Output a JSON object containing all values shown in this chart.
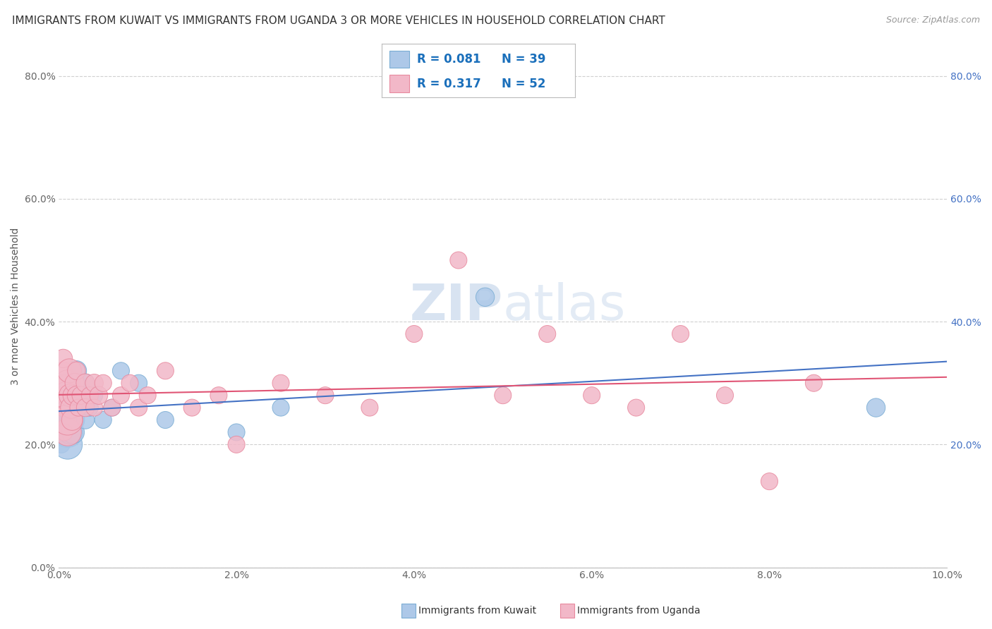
{
  "title": "IMMIGRANTS FROM KUWAIT VS IMMIGRANTS FROM UGANDA 3 OR MORE VEHICLES IN HOUSEHOLD CORRELATION CHART",
  "source": "Source: ZipAtlas.com",
  "ylabel": "3 or more Vehicles in Household",
  "xlim": [
    0.0,
    0.1
  ],
  "ylim": [
    0.0,
    0.85
  ],
  "xticks": [
    0.0,
    0.02,
    0.04,
    0.06,
    0.08,
    0.1
  ],
  "xticklabels": [
    "0.0%",
    "2.0%",
    "4.0%",
    "6.0%",
    "8.0%",
    "10.0%"
  ],
  "yticks": [
    0.0,
    0.2,
    0.4,
    0.6,
    0.8
  ],
  "yticklabels": [
    "0.0%",
    "20.0%",
    "40.0%",
    "60.0%",
    "80.0%"
  ],
  "right_yticks": [
    0.2,
    0.4,
    0.6,
    0.8
  ],
  "right_yticklabels": [
    "20.0%",
    "40.0%",
    "60.0%",
    "80.0%"
  ],
  "kuwait_color": "#adc8e8",
  "kuwait_edge": "#7aadd4",
  "uganda_color": "#f2b8c8",
  "uganda_edge": "#e8899e",
  "line_kuwait": "#4472c4",
  "line_uganda": "#e05575",
  "legend_r_color": "#1a6fbb",
  "legend_n_color": "#1a6fbb",
  "legend_label_kuwait": "Immigrants from Kuwait",
  "legend_label_uganda": "Immigrants from Uganda",
  "background_color": "#ffffff",
  "grid_color": "#d0d0d0",
  "tick_fontsize": 10,
  "axis_label_fontsize": 10,
  "title_fontsize": 11,
  "kuwait_x": [
    0.0003,
    0.0003,
    0.0004,
    0.0005,
    0.0005,
    0.0006,
    0.0007,
    0.0007,
    0.0008,
    0.0009,
    0.001,
    0.001,
    0.001,
    0.001,
    0.001,
    0.0012,
    0.0013,
    0.0014,
    0.0015,
    0.0016,
    0.0017,
    0.0018,
    0.002,
    0.002,
    0.0022,
    0.0025,
    0.003,
    0.003,
    0.0035,
    0.004,
    0.005,
    0.006,
    0.007,
    0.009,
    0.012,
    0.02,
    0.025,
    0.048,
    0.092
  ],
  "kuwait_y": [
    0.22,
    0.2,
    0.24,
    0.26,
    0.28,
    0.22,
    0.3,
    0.24,
    0.22,
    0.26,
    0.22,
    0.25,
    0.28,
    0.2,
    0.24,
    0.26,
    0.22,
    0.24,
    0.28,
    0.22,
    0.24,
    0.26,
    0.32,
    0.3,
    0.28,
    0.26,
    0.3,
    0.24,
    0.26,
    0.28,
    0.24,
    0.26,
    0.32,
    0.3,
    0.24,
    0.22,
    0.26,
    0.44,
    0.26
  ],
  "kuwait_sizes": [
    30,
    25,
    28,
    30,
    25,
    28,
    30,
    25,
    28,
    30,
    80,
    70,
    60,
    75,
    65,
    55,
    50,
    45,
    50,
    45,
    40,
    38,
    35,
    30,
    30,
    28,
    30,
    28,
    25,
    25,
    25,
    25,
    25,
    25,
    25,
    25,
    25,
    30,
    30
  ],
  "uganda_x": [
    0.0002,
    0.0003,
    0.0004,
    0.0005,
    0.0005,
    0.0006,
    0.0007,
    0.0008,
    0.0009,
    0.001,
    0.001,
    0.001,
    0.001,
    0.0012,
    0.0013,
    0.0014,
    0.0015,
    0.0016,
    0.0018,
    0.002,
    0.002,
    0.0022,
    0.0025,
    0.003,
    0.003,
    0.0035,
    0.004,
    0.004,
    0.0045,
    0.005,
    0.006,
    0.007,
    0.008,
    0.009,
    0.01,
    0.012,
    0.015,
    0.018,
    0.02,
    0.025,
    0.03,
    0.035,
    0.04,
    0.045,
    0.05,
    0.055,
    0.06,
    0.065,
    0.07,
    0.075,
    0.08,
    0.085
  ],
  "uganda_y": [
    0.28,
    0.3,
    0.26,
    0.32,
    0.34,
    0.22,
    0.28,
    0.3,
    0.26,
    0.28,
    0.22,
    0.24,
    0.3,
    0.32,
    0.28,
    0.26,
    0.24,
    0.28,
    0.3,
    0.28,
    0.32,
    0.26,
    0.28,
    0.3,
    0.26,
    0.28,
    0.3,
    0.26,
    0.28,
    0.3,
    0.26,
    0.28,
    0.3,
    0.26,
    0.28,
    0.32,
    0.26,
    0.28,
    0.2,
    0.3,
    0.28,
    0.26,
    0.38,
    0.5,
    0.28,
    0.38,
    0.28,
    0.26,
    0.38,
    0.28,
    0.14,
    0.3
  ],
  "uganda_sizes": [
    25,
    28,
    25,
    28,
    30,
    25,
    28,
    25,
    28,
    70,
    65,
    80,
    60,
    50,
    45,
    40,
    38,
    35,
    33,
    30,
    28,
    25,
    28,
    30,
    28,
    25,
    28,
    25,
    28,
    25,
    25,
    25,
    25,
    25,
    25,
    25,
    25,
    25,
    25,
    25,
    25,
    25,
    25,
    25,
    25,
    25,
    25,
    25,
    25,
    25,
    25,
    25
  ]
}
